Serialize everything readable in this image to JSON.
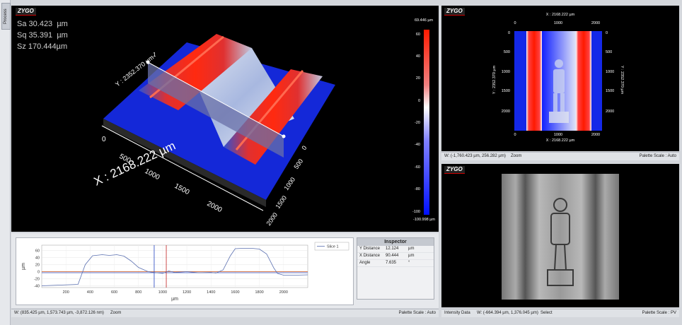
{
  "side_tab": {
    "label": "Process Statistics"
  },
  "logo_text": "ZYGO",
  "stats": [
    {
      "name": "Sa",
      "value": "30.423",
      "unit": "µm"
    },
    {
      "name": "Sq",
      "value": "35.391",
      "unit": "µm"
    },
    {
      "name": "Sz",
      "value": "170.444",
      "unit": "µm"
    }
  ],
  "view3d": {
    "x_axis_label": "X : 2168.222 µm",
    "y_axis_label": "Y : 2352.370 µm",
    "x_ticks": [
      "0",
      "500",
      "1000",
      "1500",
      "2000"
    ],
    "y_ticks": [
      "0",
      "500",
      "1000",
      "1500",
      "2000"
    ],
    "colorbar_max": "69.446 µm",
    "colorbar_min": "-100.998 µm",
    "colorbar_ticks": [
      "60",
      "40",
      "20",
      "0",
      "-20",
      "-40",
      "-60",
      "-80",
      "-100"
    ],
    "slice_label": "1"
  },
  "profile": {
    "legend": "Slice 1",
    "y_axis_label": "µm",
    "x_axis_label": "µm",
    "y_ticks": [
      "60",
      "40",
      "20",
      "0",
      "-20",
      "-40"
    ],
    "x_ticks": [
      "200",
      "400",
      "600",
      "800",
      "1000",
      "1200",
      "1400",
      "1600",
      "1800",
      "2000"
    ]
  },
  "chart_data": {
    "type": "line",
    "series": [
      {
        "name": "Slice 1",
        "x": [
          0,
          150,
          300,
          360,
          420,
          500,
          560,
          620,
          680,
          740,
          800,
          880,
          950,
          1000,
          1050,
          1100,
          1200,
          1300,
          1400,
          1440,
          1500,
          1560,
          1600,
          1660,
          1740,
          1800,
          1860,
          1920,
          1950,
          2000,
          2100,
          2200
        ],
        "y": [
          -40,
          -38,
          -36,
          20,
          45,
          48,
          46,
          48,
          44,
          30,
          12,
          0,
          -3,
          -5,
          2,
          -2,
          0,
          -3,
          -2,
          -4,
          5,
          45,
          65,
          66,
          66,
          64,
          50,
          10,
          -5,
          -10,
          -10,
          -9
        ]
      }
    ],
    "xlim": [
      0,
      2200
    ],
    "ylim": [
      -45,
      75
    ],
    "cursors": [
      930,
      1030
    ],
    "reference_lines": [
      0,
      -3
    ]
  },
  "inspector": {
    "title": "Inspector",
    "rows": [
      {
        "label": "Y Distance",
        "value": "12.124",
        "unit": "µm"
      },
      {
        "label": "X Distance",
        "value": "90.444",
        "unit": "µm"
      },
      {
        "label": "Angle",
        "value": "7.635",
        "unit": "°"
      }
    ]
  },
  "bottom_status": {
    "coords": "W: (835.425 µm, 1,573.743 µm, -3,872.126 nm)",
    "mode": "Zoom",
    "palette": "Palette Scale : Auto"
  },
  "view2d": {
    "top_label": "X : 2168.222 µm",
    "bottom_label": "X : 2168.222 µm",
    "left_label": "Y : 2352.370 µm",
    "right_label": "Y : 2352.370 µm",
    "x_ticks": [
      "0",
      "1000",
      "2000"
    ],
    "y_ticks": [
      "0",
      "500",
      "1000",
      "1500",
      "2000"
    ],
    "status_coords": "W: (-1,760.423 µm, 256.282 µm)",
    "status_mode": "Zoom",
    "status_palette": "Palette Scale : Auto"
  },
  "intensity": {
    "status_label": "Intensity Data",
    "status_coords": "W: (-664.394 µm, 1,376.045 µm)",
    "status_mode": "Select",
    "status_palette": "Palette Scale : PV"
  }
}
